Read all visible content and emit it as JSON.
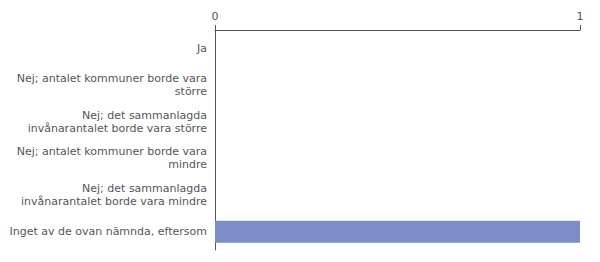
{
  "chart_data": {
    "type": "bar",
    "orientation": "horizontal",
    "categories": [
      "Inget av de ovan nämnda, eftersom",
      "Nej; det sammanlagda\ninvånarantalet borde vara mindre",
      "Nej; antalet kommuner borde vara\nmindre",
      "Nej; det sammanlagda\ninvånarantalet borde vara större",
      "Nej; antalet kommuner borde vara\nstörre",
      "Ja"
    ],
    "values": [
      1,
      0,
      0,
      0,
      0,
      0
    ],
    "color": "#7b8ec8",
    "xlim": [
      0,
      1
    ],
    "xticks": [
      0,
      1
    ],
    "grid": false
  }
}
